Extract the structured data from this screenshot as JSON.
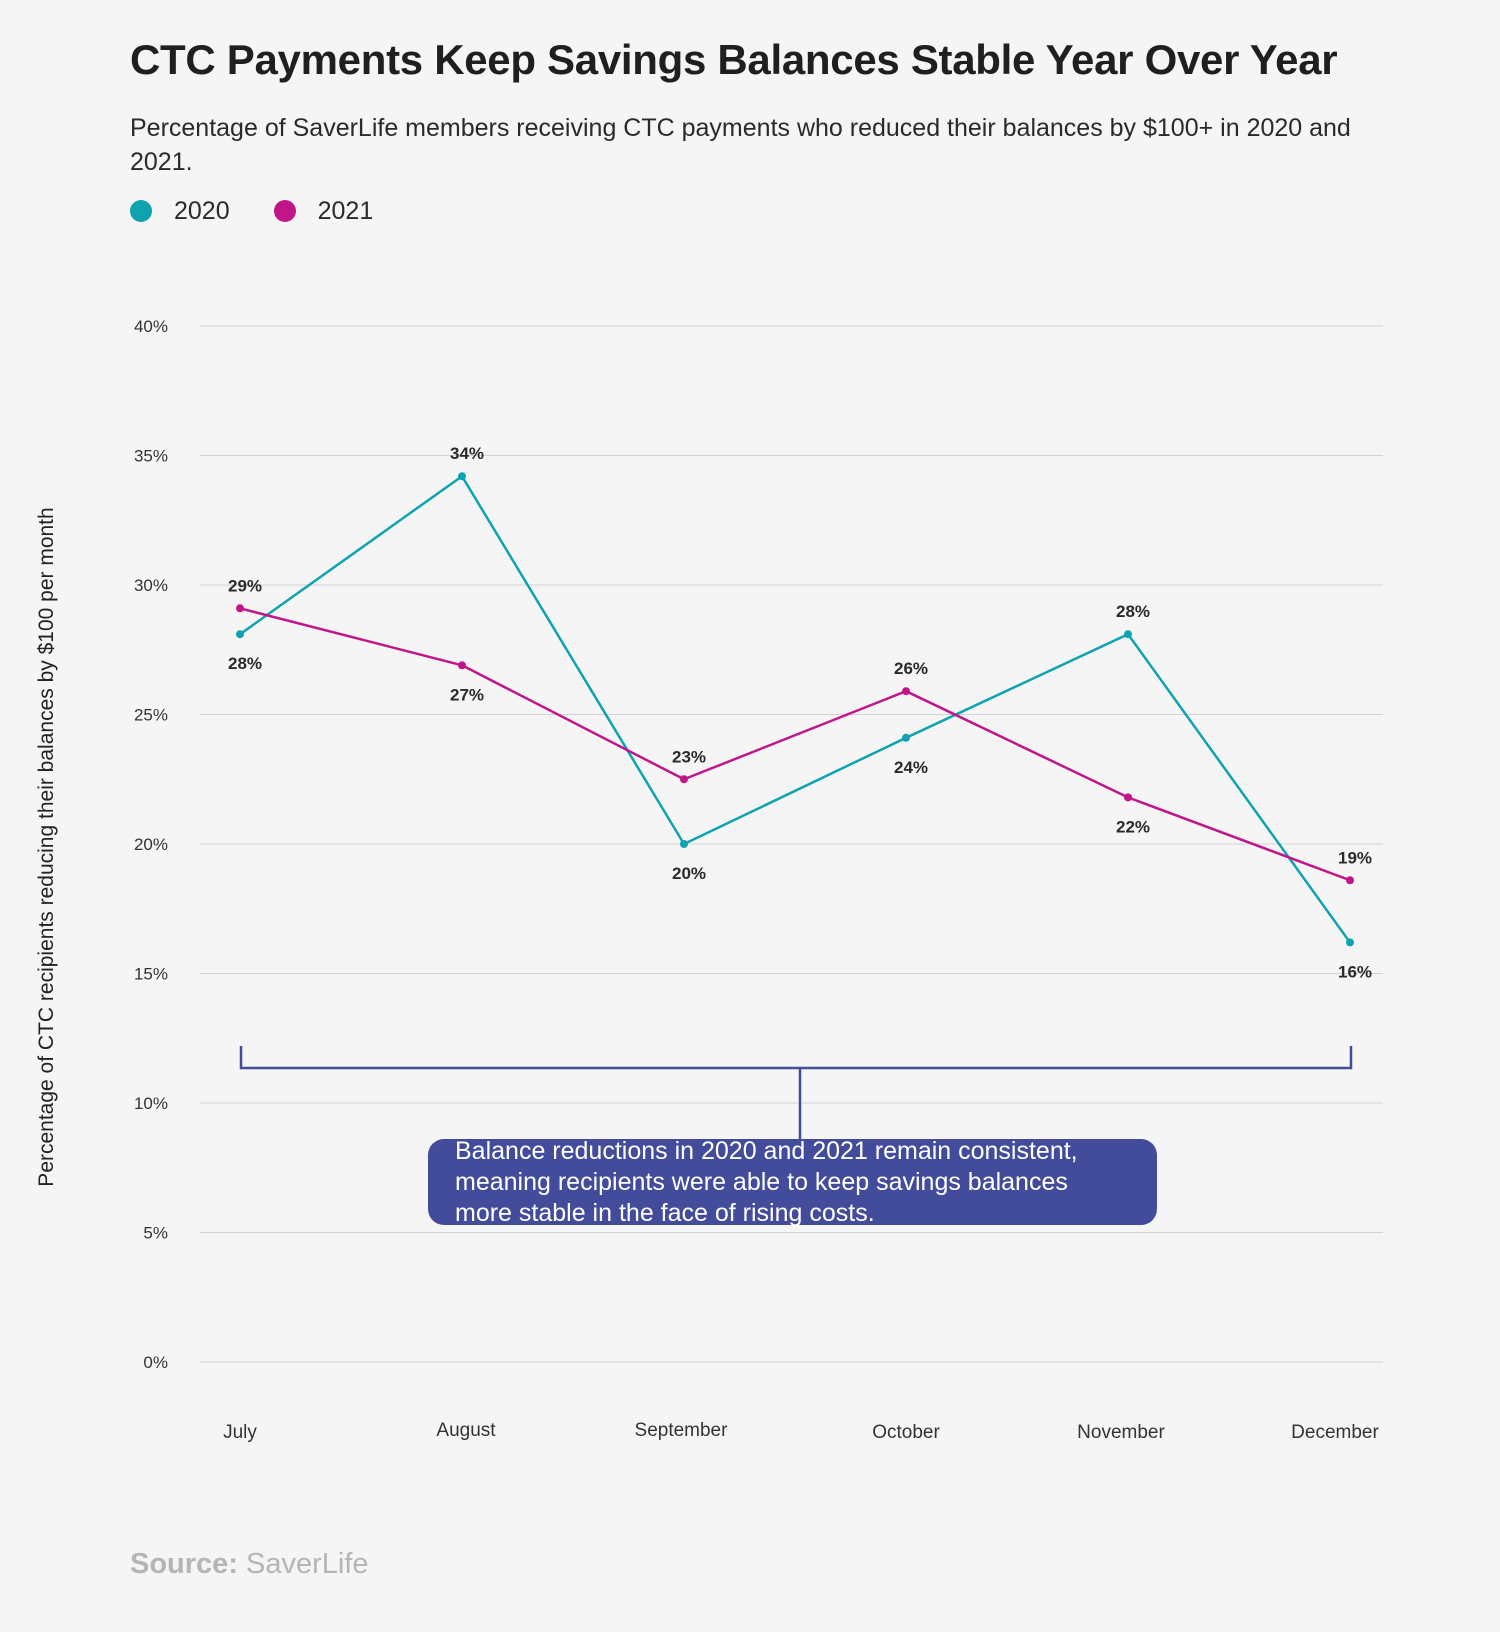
{
  "title": "CTC Payments Keep Savings Balances Stable Year Over Year",
  "subtitle": "Percentage of SaverLife members receiving CTC payments who reduced their balances by $100+ in 2020 and 2021.",
  "legend": [
    {
      "label": "2020",
      "color": "#0fa3b1"
    },
    {
      "label": "2021",
      "color": "#c0168a"
    }
  ],
  "chart_data": {
    "type": "line",
    "title": "CTC Payments Keep Savings Balances Stable Year Over Year",
    "xlabel": "",
    "ylabel": "Percentage of CTC recipients reducing their balances by $100 per month",
    "categories": [
      "July",
      "August",
      "September",
      "October",
      "November",
      "December"
    ],
    "ylim": [
      0,
      40
    ],
    "yticks": [
      0,
      5,
      10,
      15,
      20,
      25,
      30,
      35,
      40
    ],
    "ytick_labels": [
      "0%",
      "5%",
      "10%",
      "15%",
      "20%",
      "25%",
      "30%",
      "35%",
      "40%"
    ],
    "grid": true,
    "series": [
      {
        "name": "2020",
        "color": "#0fa3b1",
        "values": [
          28.1,
          34.2,
          20.0,
          24.1,
          28.1,
          16.2
        ],
        "labels": [
          "28%",
          "34%",
          "20%",
          "24%",
          "28%",
          "16%"
        ]
      },
      {
        "name": "2021",
        "color": "#c0168a",
        "values": [
          29.1,
          26.9,
          22.5,
          25.9,
          21.8,
          18.6
        ],
        "labels": [
          "29%",
          "27%",
          "23%",
          "26%",
          "22%",
          "19%"
        ]
      }
    ]
  },
  "annotation": {
    "text_lines": [
      "Balance reductions in 2020 and 2021 remain consistent,",
      "meaning recipients were able to keep savings balances",
      "more stable in the face of rising costs."
    ],
    "box_color": "#434c9b",
    "bracket_color": "#434c9b"
  },
  "source": {
    "label": "Source:",
    "value": "SaverLife"
  }
}
